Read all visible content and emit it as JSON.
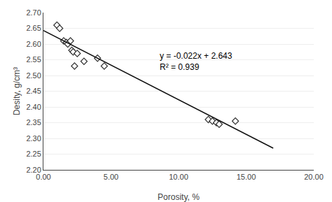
{
  "chart_data": {
    "type": "scatter",
    "xlabel": "Porosity, %",
    "ylabel": "Desity, g/cm³",
    "series": [
      {
        "type": "scatter",
        "marker": "diamond",
        "color": "#333333",
        "x": [
          1.0,
          1.2,
          1.5,
          1.7,
          1.8,
          2.0,
          2.1,
          2.2,
          2.3,
          2.5,
          3.0,
          4.0,
          4.5,
          12.2,
          12.5,
          12.8,
          13.0,
          14.2
        ],
        "values": [
          2.66,
          2.65,
          2.61,
          2.605,
          2.6,
          2.61,
          2.58,
          2.575,
          2.53,
          2.57,
          2.545,
          2.555,
          2.53,
          2.36,
          2.355,
          2.35,
          2.345,
          2.355
        ]
      },
      {
        "type": "line",
        "line_style": "solid",
        "color": "#111111",
        "x": [
          0.0,
          17.0
        ],
        "values": [
          2.643,
          2.269
        ]
      }
    ],
    "annotations": [
      "y = -0.022x + 2.643",
      "R² = 0.939"
    ],
    "xlim": [
      0.0,
      20.0
    ],
    "ylim": [
      2.2,
      2.7
    ],
    "xticks": [
      {
        "value": 0.0,
        "label": "0.00"
      },
      {
        "value": 5.0,
        "label": "5.00"
      },
      {
        "value": 10.0,
        "label": "10.00"
      },
      {
        "value": 15.0,
        "label": "15.00"
      },
      {
        "value": 20.0,
        "label": "20.00"
      }
    ],
    "yticks": [
      {
        "value": 2.2,
        "label": "2.20"
      },
      {
        "value": 2.25,
        "label": "2.25"
      },
      {
        "value": 2.3,
        "label": "2.30"
      },
      {
        "value": 2.35,
        "label": "2.35"
      },
      {
        "value": 2.4,
        "label": "2.40"
      },
      {
        "value": 2.45,
        "label": "2.45"
      },
      {
        "value": 2.5,
        "label": "2.50"
      },
      {
        "value": 2.55,
        "label": "2.55"
      },
      {
        "value": 2.6,
        "label": "2.60"
      },
      {
        "value": 2.65,
        "label": "2.65"
      },
      {
        "value": 2.7,
        "label": "2.70"
      }
    ],
    "grid": "y"
  }
}
